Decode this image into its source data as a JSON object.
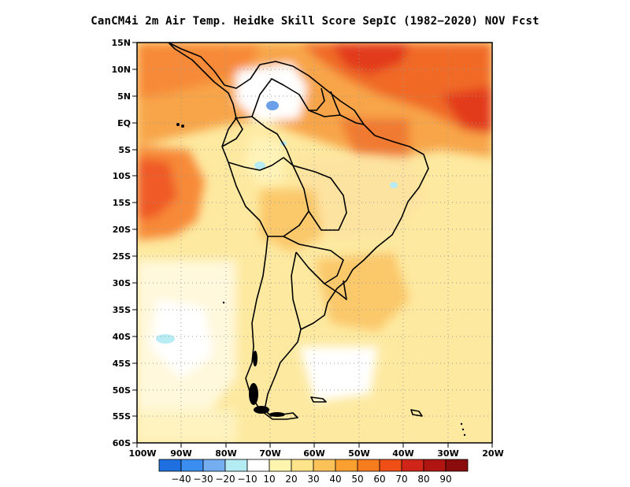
{
  "title": "CanCM4i  2m Air Temp. Heidke Skill Score SepIC (1982−2020) NOV Fcst",
  "map": {
    "region": "South America",
    "lat_ticks": [
      "15N",
      "10N",
      "5N",
      "EQ",
      "5S",
      "10S",
      "15S",
      "20S",
      "25S",
      "30S",
      "35S",
      "40S",
      "45S",
      "50S",
      "55S",
      "60S"
    ],
    "lon_ticks": [
      "100W",
      "90W",
      "80W",
      "70W",
      "60W",
      "50W",
      "40W",
      "30W",
      "20W"
    ],
    "grid": "dotted"
  },
  "colorbar": {
    "labels": [
      "−40",
      "−30",
      "−20",
      "−10",
      "10",
      "20",
      "30",
      "40",
      "50",
      "60",
      "70",
      "80",
      "90"
    ],
    "colors": [
      "#1f6fe0",
      "#3b8ef0",
      "#74aef0",
      "#b4ecf4",
      "#ffffff",
      "#fff3b0",
      "#fde38a",
      "#fbc25a",
      "#f9a030",
      "#f77c1e",
      "#ef4f17",
      "#d2251a",
      "#b01512",
      "#8a0c0c"
    ]
  }
}
